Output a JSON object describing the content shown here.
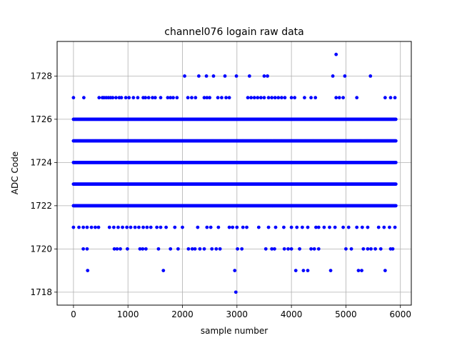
{
  "chart_data": {
    "type": "scatter",
    "title": "channel076 logain raw data",
    "xlabel": "sample number",
    "ylabel": "ADC Code",
    "xlim": [
      -300,
      6200
    ],
    "ylim": [
      1717.4,
      1729.6
    ],
    "xticks": [
      0,
      1000,
      2000,
      3000,
      4000,
      5000,
      6000
    ],
    "yticks": [
      1718,
      1720,
      1722,
      1724,
      1726,
      1728
    ],
    "grid": true,
    "marker_color": "#0000ff",
    "series": [
      {
        "points": [
          [
            0,
            1727
          ],
          [
            190,
            1727
          ],
          [
            470,
            1727
          ],
          [
            530,
            1727
          ],
          [
            560,
            1727
          ],
          [
            600,
            1727
          ],
          [
            640,
            1727
          ],
          [
            680,
            1727
          ],
          [
            720,
            1727
          ],
          [
            780,
            1727
          ],
          [
            840,
            1727
          ],
          [
            880,
            1727
          ],
          [
            960,
            1727
          ],
          [
            1020,
            1727
          ],
          [
            1100,
            1727
          ],
          [
            1180,
            1727
          ],
          [
            1280,
            1727
          ],
          [
            1320,
            1727
          ],
          [
            1380,
            1727
          ],
          [
            1450,
            1727
          ],
          [
            1500,
            1727
          ],
          [
            1600,
            1727
          ],
          [
            1730,
            1727
          ],
          [
            1780,
            1727
          ],
          [
            1830,
            1727
          ],
          [
            1900,
            1727
          ],
          [
            2100,
            1727
          ],
          [
            2170,
            1727
          ],
          [
            2240,
            1727
          ],
          [
            2400,
            1727
          ],
          [
            2450,
            1727
          ],
          [
            2500,
            1727
          ],
          [
            2650,
            1727
          ],
          [
            2720,
            1727
          ],
          [
            2800,
            1727
          ],
          [
            2860,
            1727
          ],
          [
            3200,
            1727
          ],
          [
            3260,
            1727
          ],
          [
            3320,
            1727
          ],
          [
            3380,
            1727
          ],
          [
            3440,
            1727
          ],
          [
            3500,
            1727
          ],
          [
            3580,
            1727
          ],
          [
            3640,
            1727
          ],
          [
            3700,
            1727
          ],
          [
            3760,
            1727
          ],
          [
            3820,
            1727
          ],
          [
            3880,
            1727
          ],
          [
            4000,
            1727
          ],
          [
            4060,
            1727
          ],
          [
            4240,
            1727
          ],
          [
            4360,
            1727
          ],
          [
            4440,
            1727
          ],
          [
            4820,
            1727
          ],
          [
            4880,
            1727
          ],
          [
            4950,
            1727
          ],
          [
            5200,
            1727
          ],
          [
            5720,
            1727
          ],
          [
            5820,
            1727
          ],
          [
            5900,
            1727
          ],
          [
            2040,
            1728
          ],
          [
            2300,
            1728
          ],
          [
            2440,
            1728
          ],
          [
            2570,
            1728
          ],
          [
            2780,
            1728
          ],
          [
            2990,
            1728
          ],
          [
            3230,
            1728
          ],
          [
            3500,
            1728
          ],
          [
            3560,
            1728
          ],
          [
            4760,
            1728
          ],
          [
            4980,
            1728
          ],
          [
            5450,
            1728
          ],
          [
            4820,
            1729
          ],
          [
            2980,
            1718
          ],
          [
            260,
            1719
          ],
          [
            1650,
            1719
          ],
          [
            2960,
            1719
          ],
          [
            4080,
            1719
          ],
          [
            4220,
            1719
          ],
          [
            4300,
            1719
          ],
          [
            4720,
            1719
          ],
          [
            5230,
            1719
          ],
          [
            5290,
            1719
          ],
          [
            5720,
            1719
          ],
          [
            180,
            1720
          ],
          [
            250,
            1720
          ],
          [
            750,
            1720
          ],
          [
            800,
            1720
          ],
          [
            860,
            1720
          ],
          [
            990,
            1720
          ],
          [
            1220,
            1720
          ],
          [
            1270,
            1720
          ],
          [
            1330,
            1720
          ],
          [
            1560,
            1720
          ],
          [
            1780,
            1720
          ],
          [
            1920,
            1720
          ],
          [
            2110,
            1720
          ],
          [
            2180,
            1720
          ],
          [
            2230,
            1720
          ],
          [
            2320,
            1720
          ],
          [
            2400,
            1720
          ],
          [
            2540,
            1720
          ],
          [
            2620,
            1720
          ],
          [
            2690,
            1720
          ],
          [
            3010,
            1720
          ],
          [
            3090,
            1720
          ],
          [
            3530,
            1720
          ],
          [
            3640,
            1720
          ],
          [
            3690,
            1720
          ],
          [
            3870,
            1720
          ],
          [
            3940,
            1720
          ],
          [
            4000,
            1720
          ],
          [
            4150,
            1720
          ],
          [
            4360,
            1720
          ],
          [
            4420,
            1720
          ],
          [
            4500,
            1720
          ],
          [
            5000,
            1720
          ],
          [
            5100,
            1720
          ],
          [
            5320,
            1720
          ],
          [
            5400,
            1720
          ],
          [
            5460,
            1720
          ],
          [
            5540,
            1720
          ],
          [
            5640,
            1720
          ],
          [
            5820,
            1720
          ],
          [
            5860,
            1720
          ],
          [
            0,
            1721
          ],
          [
            100,
            1721
          ],
          [
            180,
            1721
          ],
          [
            250,
            1721
          ],
          [
            330,
            1721
          ],
          [
            400,
            1721
          ],
          [
            460,
            1721
          ],
          [
            660,
            1721
          ],
          [
            740,
            1721
          ],
          [
            820,
            1721
          ],
          [
            900,
            1721
          ],
          [
            980,
            1721
          ],
          [
            1050,
            1721
          ],
          [
            1130,
            1721
          ],
          [
            1200,
            1721
          ],
          [
            1280,
            1721
          ],
          [
            1350,
            1721
          ],
          [
            1420,
            1721
          ],
          [
            1530,
            1721
          ],
          [
            1600,
            1721
          ],
          [
            1700,
            1721
          ],
          [
            1860,
            1721
          ],
          [
            2000,
            1721
          ],
          [
            2280,
            1721
          ],
          [
            2450,
            1721
          ],
          [
            2520,
            1721
          ],
          [
            2660,
            1721
          ],
          [
            2860,
            1721
          ],
          [
            2920,
            1721
          ],
          [
            3000,
            1721
          ],
          [
            3110,
            1721
          ],
          [
            3180,
            1721
          ],
          [
            3400,
            1721
          ],
          [
            3580,
            1721
          ],
          [
            3710,
            1721
          ],
          [
            3860,
            1721
          ],
          [
            4000,
            1721
          ],
          [
            4100,
            1721
          ],
          [
            4200,
            1721
          ],
          [
            4300,
            1721
          ],
          [
            4450,
            1721
          ],
          [
            4500,
            1721
          ],
          [
            4600,
            1721
          ],
          [
            4700,
            1721
          ],
          [
            4800,
            1721
          ],
          [
            4950,
            1721
          ],
          [
            5050,
            1721
          ],
          [
            5200,
            1721
          ],
          [
            5300,
            1721
          ],
          [
            5400,
            1721
          ],
          [
            5600,
            1721
          ],
          [
            5700,
            1721
          ],
          [
            5800,
            1721
          ],
          [
            5900,
            1721
          ]
        ]
      }
    ],
    "dense_bands": [
      {
        "y": 1722,
        "x": [
          0,
          5920
        ]
      },
      {
        "y": 1723,
        "x": [
          0,
          5920
        ]
      },
      {
        "y": 1724,
        "x": [
          0,
          5920
        ]
      },
      {
        "y": 1725,
        "x": [
          0,
          5920
        ]
      },
      {
        "y": 1726,
        "x": [
          0,
          5920
        ]
      }
    ]
  }
}
